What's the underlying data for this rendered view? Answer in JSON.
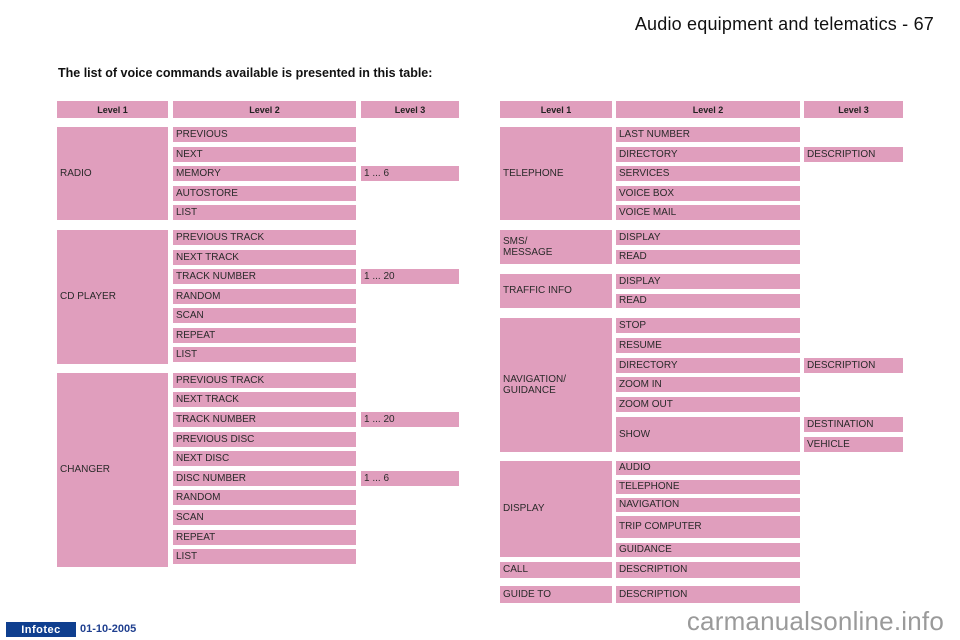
{
  "header": {
    "page_title": "Audio equipment and telematics - 67"
  },
  "intro": "The list of voice commands available is presented in this table:",
  "theme": {
    "cell_color": "#e09ebd",
    "header_color": "#e09ebd",
    "badge_color": "#0f3f8f"
  },
  "left_table": {
    "headers": [
      "Level 1",
      "Level 2",
      "Level 3"
    ],
    "groups": [
      {
        "level1": "RADIO",
        "rows": [
          {
            "level2": "PREVIOUS",
            "level3": ""
          },
          {
            "level2": "NEXT",
            "level3": ""
          },
          {
            "level2": "MEMORY",
            "level3": "1 ... 6"
          },
          {
            "level2": "AUTOSTORE",
            "level3": ""
          },
          {
            "level2": "LIST",
            "level3": ""
          }
        ]
      },
      {
        "level1": "CD PLAYER",
        "rows": [
          {
            "level2": "PREVIOUS TRACK",
            "level3": ""
          },
          {
            "level2": "NEXT TRACK",
            "level3": ""
          },
          {
            "level2": "TRACK NUMBER",
            "level3": "1 ... 20"
          },
          {
            "level2": "RANDOM",
            "level3": ""
          },
          {
            "level2": "SCAN",
            "level3": ""
          },
          {
            "level2": "REPEAT",
            "level3": ""
          },
          {
            "level2": "LIST",
            "level3": ""
          }
        ]
      },
      {
        "level1": "CHANGER",
        "rows": [
          {
            "level2": "PREVIOUS TRACK",
            "level3": ""
          },
          {
            "level2": "NEXT TRACK",
            "level3": ""
          },
          {
            "level2": "TRACK NUMBER",
            "level3": "1 ... 20"
          },
          {
            "level2": "PREVIOUS DISC",
            "level3": ""
          },
          {
            "level2": "NEXT DISC",
            "level3": ""
          },
          {
            "level2": "DISC NUMBER",
            "level3": "1 ... 6"
          },
          {
            "level2": "RANDOM",
            "level3": ""
          },
          {
            "level2": "SCAN",
            "level3": ""
          },
          {
            "level2": "REPEAT",
            "level3": ""
          },
          {
            "level2": "LIST",
            "level3": ""
          }
        ]
      }
    ]
  },
  "right_table": {
    "headers": [
      "Level 1",
      "Level 2",
      "Level 3"
    ],
    "groups": [
      {
        "level1": "TELEPHONE",
        "rows": [
          {
            "level2": "LAST NUMBER",
            "level3": []
          },
          {
            "level2": "DIRECTORY",
            "level3": [
              "DESCRIPTION"
            ]
          },
          {
            "level2": "SERVICES",
            "level3": []
          },
          {
            "level2": "VOICE BOX",
            "level3": []
          },
          {
            "level2": "VOICE MAIL",
            "level3": []
          }
        ]
      },
      {
        "level1": "SMS/\nMESSAGE",
        "rows": [
          {
            "level2": "DISPLAY",
            "level3": []
          },
          {
            "level2": "READ",
            "level3": []
          }
        ]
      },
      {
        "level1": "TRAFFIC INFO",
        "rows": [
          {
            "level2": "DISPLAY",
            "level3": []
          },
          {
            "level2": "READ",
            "level3": []
          }
        ]
      },
      {
        "level1": "NAVIGATION/\nGUIDANCE",
        "rows": [
          {
            "level2": "STOP",
            "level3": []
          },
          {
            "level2": "RESUME",
            "level3": []
          },
          {
            "level2": "DIRECTORY",
            "level3": [
              "DESCRIPTION"
            ]
          },
          {
            "level2": "ZOOM IN",
            "level3": []
          },
          {
            "level2": "ZOOM OUT",
            "level3": []
          },
          {
            "level2": "SHOW",
            "level3": [
              "DESTINATION",
              "VEHICLE"
            ]
          }
        ]
      },
      {
        "level1": "DISPLAY",
        "rows": [
          {
            "level2": "AUDIO",
            "level3": []
          },
          {
            "level2": "TELEPHONE",
            "level3": []
          },
          {
            "level2": "NAVIGATION",
            "level3": []
          },
          {
            "level2": "TRIP COMPUTER",
            "level3": []
          },
          {
            "level2": "GUIDANCE",
            "level3": []
          }
        ]
      },
      {
        "level1": "CALL",
        "rows": [
          {
            "level2": "DESCRIPTION",
            "level3": []
          }
        ]
      },
      {
        "level1": "GUIDE TO",
        "rows": [
          {
            "level2": "DESCRIPTION",
            "level3": []
          }
        ]
      }
    ]
  },
  "footer": {
    "badge": "Infotec",
    "date": "01-10-2005"
  },
  "watermark": "carmanualsonline.info"
}
